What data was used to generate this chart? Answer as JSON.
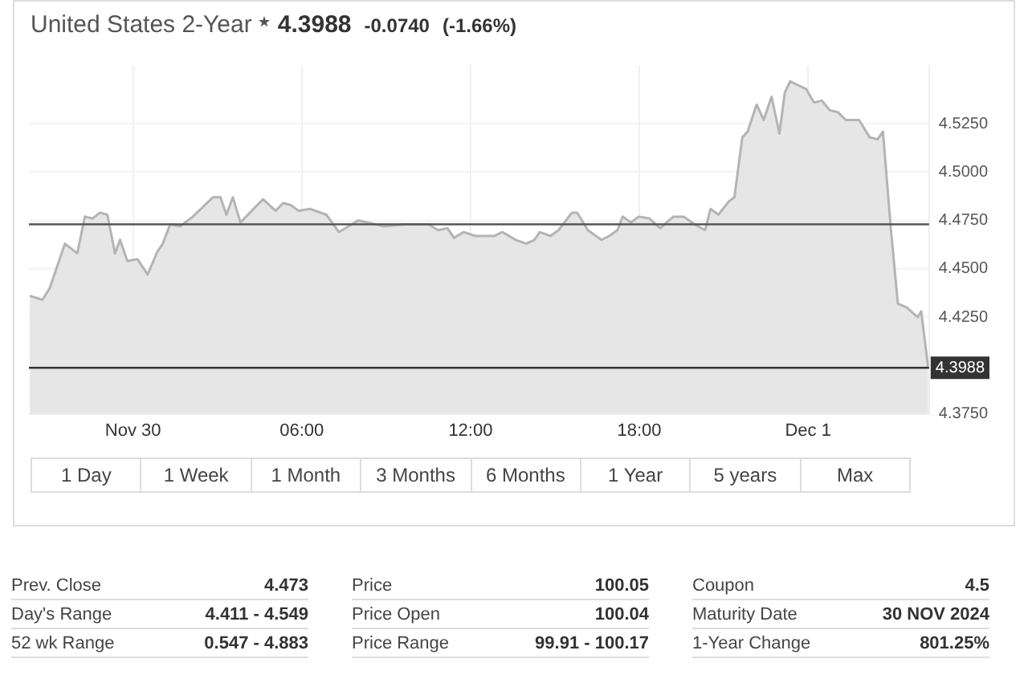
{
  "chart_data": [
    {
      "type": "area",
      "title": "United States 2-Year",
      "annotations": [
        "4.3988",
        "-0.0740",
        "(-1.66%)"
      ],
      "x": [
        -3.67,
        -3.22,
        -2.96,
        -2.42,
        -1.98,
        -1.71,
        -1.44,
        -1.18,
        -0.91,
        -0.64,
        -0.46,
        -0.2,
        0.16,
        0.52,
        0.87,
        1.06,
        1.32,
        1.68,
        2.13,
        2.84,
        3.11,
        3.32,
        3.55,
        3.82,
        4.62,
        5.07,
        5.34,
        5.61,
        5.88,
        6.29,
        6.87,
        7.32,
        8.0,
        8.34,
        8.91,
        9.7,
        10.5,
        10.84,
        11.18,
        11.41,
        11.75,
        12.17,
        12.84,
        13.13,
        13.6,
        13.98,
        14.27,
        14.46,
        14.84,
        15.13,
        15.6,
        15.79,
        16.17,
        16.65,
        16.93,
        17.22,
        17.41,
        17.7,
        17.98,
        18.36,
        18.74,
        19.21,
        19.58,
        19.96,
        20.34,
        20.53,
        20.81,
        21.19,
        21.38,
        21.66,
        21.85,
        22.17,
        22.42,
        22.7,
        22.98,
        23.17,
        23.36,
        23.64,
        23.93,
        24.21,
        24.49,
        24.77,
        25.06,
        25.34,
        25.81,
        26.19,
        26.47,
        26.66,
        26.94,
        27.19,
        27.51,
        27.89,
        28.02,
        28.27
      ],
      "series": [
        {
          "color": "#b4b4b4",
          "values": [
            4.436,
            4.434,
            4.44,
            4.463,
            4.458,
            4.477,
            4.476,
            4.479,
            4.478,
            4.458,
            4.465,
            4.454,
            4.455,
            4.447,
            4.459,
            4.463,
            4.473,
            4.472,
            4.477,
            4.487,
            4.487,
            4.478,
            4.487,
            4.474,
            4.486,
            4.48,
            4.484,
            4.483,
            4.48,
            4.481,
            4.478,
            4.469,
            4.475,
            4.474,
            4.472,
            4.473,
            4.473,
            4.47,
            4.471,
            4.466,
            4.469,
            4.467,
            4.467,
            4.469,
            4.465,
            4.463,
            4.465,
            4.469,
            4.467,
            4.47,
            4.479,
            4.479,
            4.47,
            4.465,
            4.467,
            4.47,
            4.477,
            4.474,
            4.477,
            4.476,
            4.471,
            4.477,
            4.477,
            4.473,
            4.47,
            4.481,
            4.478,
            4.485,
            4.487,
            4.518,
            4.521,
            4.535,
            4.527,
            4.539,
            4.52,
            4.541,
            4.547,
            4.545,
            4.543,
            4.536,
            4.537,
            4.532,
            4.531,
            4.527,
            4.527,
            4.518,
            4.517,
            4.521,
            4.471,
            4.432,
            4.43,
            4.425,
            4.428,
            4.3988
          ]
        }
      ],
      "xlim": [
        -3.7,
        28.3
      ],
      "xticks": [
        {
          "value": 0,
          "label": "Nov 30"
        },
        {
          "value": 6,
          "label": "06:00"
        },
        {
          "value": 12,
          "label": "12:00"
        },
        {
          "value": 18,
          "label": "18:00"
        },
        {
          "value": 24,
          "label": "Dec 1"
        }
      ],
      "ylim": [
        4.375,
        4.555
      ],
      "yticks": [
        {
          "value": 4.375,
          "label": "4.3750"
        },
        {
          "value": 4.425,
          "label": "4.4250"
        },
        {
          "value": 4.45,
          "label": "4.4500"
        },
        {
          "value": 4.475,
          "label": "4.4750"
        },
        {
          "value": 4.5,
          "label": "4.5000"
        },
        {
          "value": 4.525,
          "label": "4.5250"
        }
      ],
      "ref_lines": [
        {
          "axis": "y",
          "value": 4.473,
          "color": "#555555"
        },
        {
          "axis": "y",
          "value": 4.3988,
          "label": "4.3988",
          "color": "#333333"
        }
      ],
      "grid": true,
      "legend": false,
      "marker": "none"
    },
    {
      "type": "other",
      "annotations": [
        "1 Day",
        "1 Week",
        "1 Month",
        "3 Months",
        "6 Months",
        "1 Year",
        "5 years",
        "Max"
      ]
    },
    {
      "type": "other",
      "annotations": [
        "Prev. Close",
        "4.473",
        "Price",
        "100.05",
        "Coupon",
        "4.5",
        "Day's Range",
        "4.411 - 4.549",
        "Price Open",
        "100.04",
        "Maturity Date",
        "30 NOV 2024",
        "52 wk Range",
        "0.547 - 4.883",
        "Price Range",
        "99.91 - 100.17",
        "1-Year Change",
        "801.25%"
      ]
    }
  ]
}
